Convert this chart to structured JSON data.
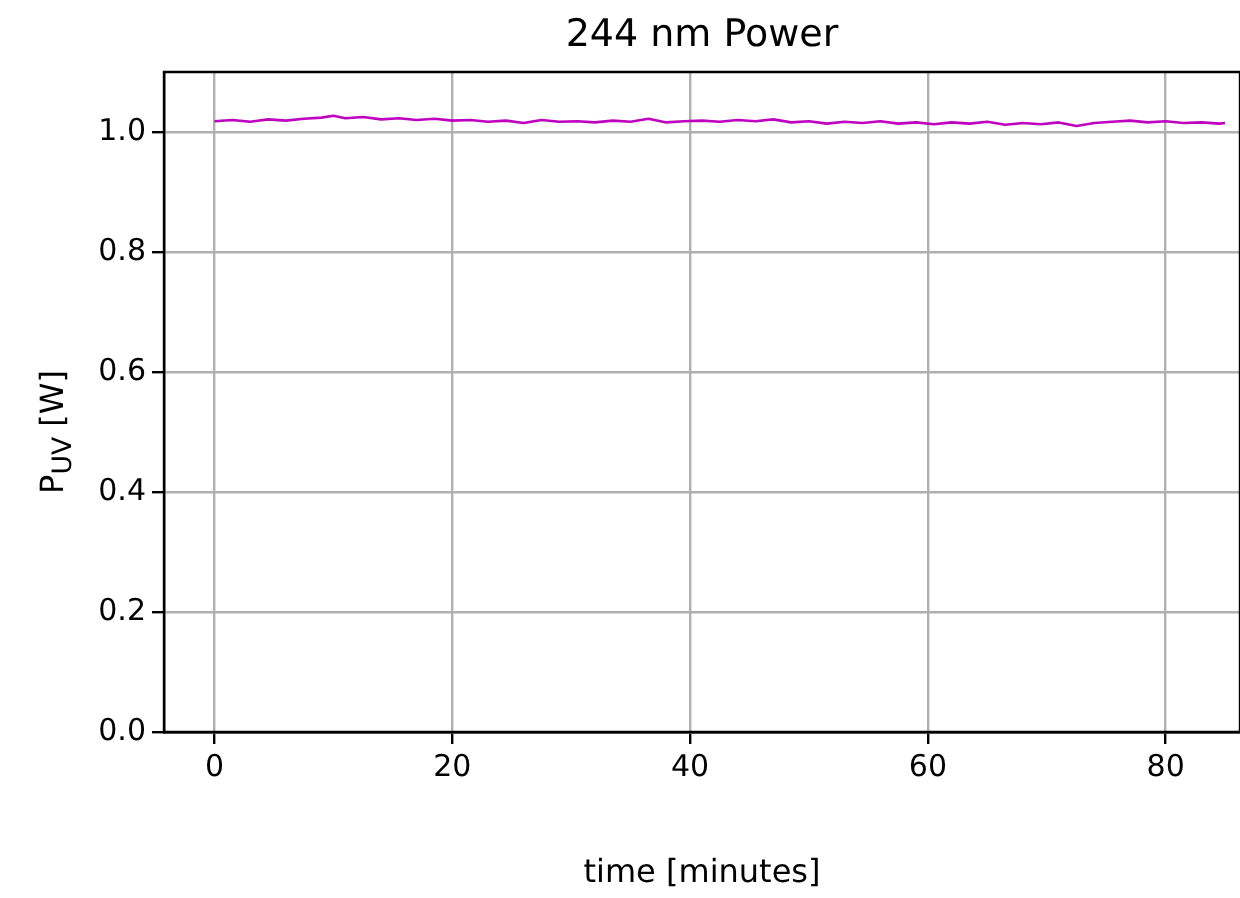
{
  "chart_data": {
    "type": "line",
    "title": "244 nm Power",
    "xlabel": "time [minutes]",
    "ylabel": "P$_{UV}$ [W]",
    "x": [
      0,
      1.5,
      3,
      4.5,
      6,
      7.5,
      9,
      10,
      11,
      12.5,
      14,
      15.5,
      17,
      18.5,
      20,
      21.5,
      23,
      24.5,
      26,
      27.5,
      29,
      30.5,
      32,
      33.5,
      35,
      36.5,
      38,
      39.5,
      41,
      42.5,
      44,
      45.5,
      47,
      48.5,
      50,
      51.5,
      53,
      54.5,
      56,
      57.5,
      59,
      60.5,
      62,
      63.5,
      65,
      66.5,
      68,
      69.5,
      71,
      72.5,
      74,
      75.5,
      77,
      78.5,
      80,
      81.5,
      83,
      84.5,
      85
    ],
    "series": [
      {
        "color": "#c000c0",
        "values": [
          1.018,
          1.02,
          1.017,
          1.021,
          1.019,
          1.022,
          1.024,
          1.027,
          1.023,
          1.025,
          1.021,
          1.023,
          1.02,
          1.022,
          1.019,
          1.02,
          1.017,
          1.019,
          1.015,
          1.02,
          1.017,
          1.018,
          1.016,
          1.019,
          1.017,
          1.022,
          1.016,
          1.018,
          1.019,
          1.017,
          1.02,
          1.018,
          1.021,
          1.016,
          1.018,
          1.014,
          1.017,
          1.015,
          1.018,
          1.014,
          1.016,
          1.013,
          1.016,
          1.014,
          1.017,
          1.012,
          1.015,
          1.013,
          1.016,
          1.01,
          1.015,
          1.017,
          1.019,
          1.016,
          1.018,
          1.015,
          1.016,
          1.014,
          1.015
        ]
      }
    ],
    "xlim": [
      -4.25,
      86.25
    ],
    "xticks": [
      0,
      20,
      40,
      60,
      80
    ],
    "ylim": [
      0,
      1.1
    ],
    "yticks": [
      {
        "value": 0,
        "label": "0.0"
      },
      {
        "value": 0.2,
        "label": "0.2"
      },
      {
        "value": 0.4,
        "label": "0.4"
      },
      {
        "value": 0.6,
        "label": "0.6"
      },
      {
        "value": 0.8,
        "label": "0.8"
      },
      {
        "value": 1,
        "label": "1.0"
      }
    ],
    "grid": true,
    "marker": "none",
    "line_style": "solid"
  }
}
